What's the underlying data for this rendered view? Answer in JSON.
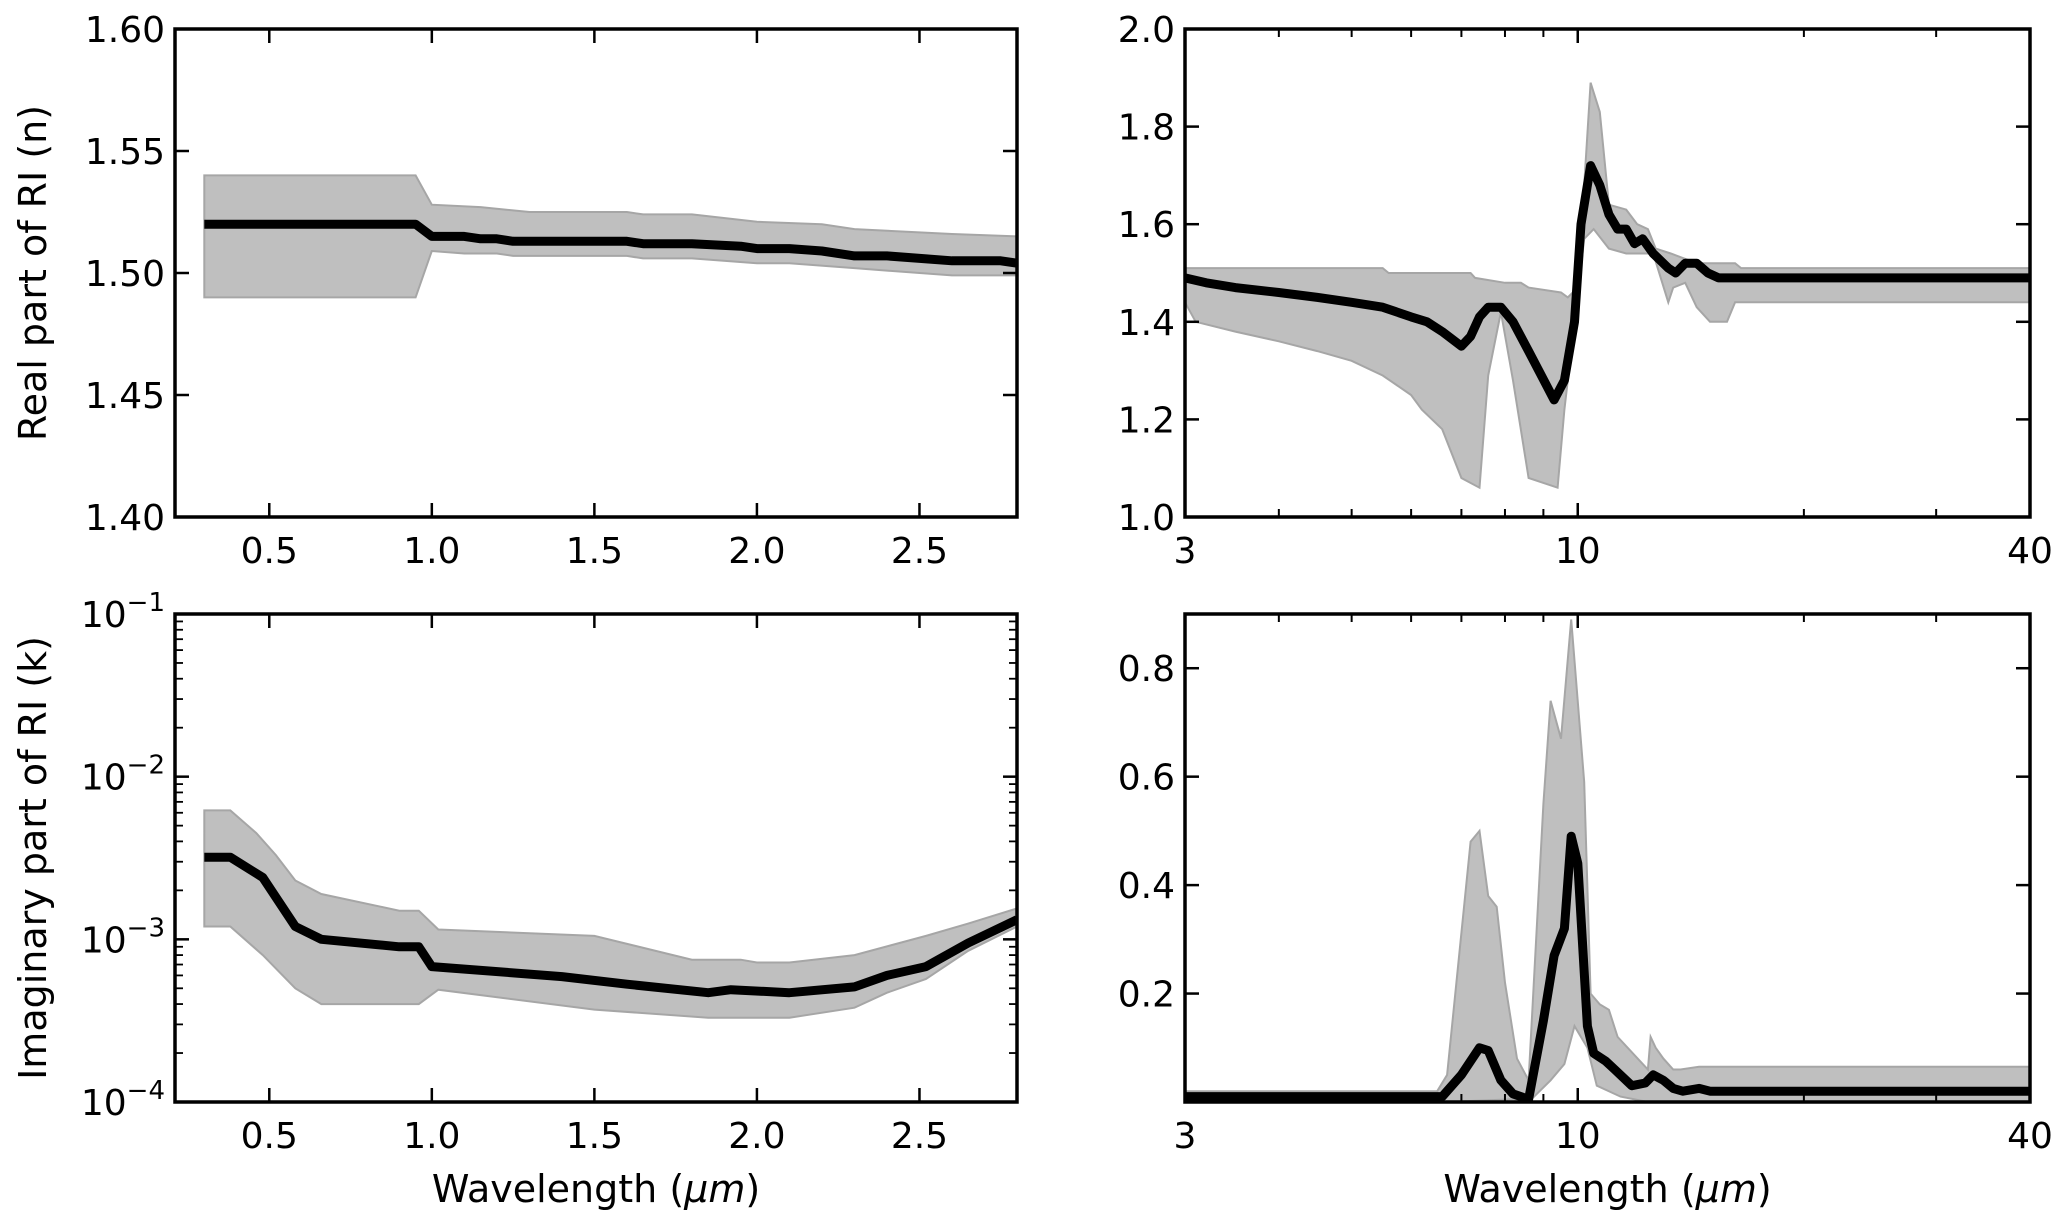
{
  "chart_data": [
    {
      "id": "real-short",
      "type": "line",
      "xlabel": "",
      "ylabel": "Real part of RI (n)",
      "xscale": "linear",
      "yscale": "linear",
      "xlim": [
        0.21,
        2.8
      ],
      "ylim": [
        1.4,
        1.6
      ],
      "xticks": [
        0.5,
        1.0,
        1.5,
        2.0,
        2.5
      ],
      "xticklabels": [
        "0.5",
        "1.0",
        "1.5",
        "2.0",
        "2.5"
      ],
      "yticks": [
        1.4,
        1.45,
        1.5,
        1.55,
        1.6
      ],
      "yticklabels": [
        "1.40",
        "1.45",
        "1.50",
        "1.55",
        "1.60"
      ],
      "grid": false,
      "mean": [
        [
          0.3,
          1.52
        ],
        [
          0.95,
          1.52
        ],
        [
          1.0,
          1.515
        ],
        [
          1.1,
          1.515
        ],
        [
          1.15,
          1.514
        ],
        [
          1.2,
          1.514
        ],
        [
          1.25,
          1.513
        ],
        [
          1.6,
          1.513
        ],
        [
          1.65,
          1.512
        ],
        [
          1.8,
          1.512
        ],
        [
          1.95,
          1.511
        ],
        [
          2.0,
          1.51
        ],
        [
          2.1,
          1.51
        ],
        [
          2.2,
          1.509
        ],
        [
          2.3,
          1.507
        ],
        [
          2.4,
          1.507
        ],
        [
          2.6,
          1.505
        ],
        [
          2.75,
          1.505
        ],
        [
          2.8,
          1.504
        ]
      ],
      "upper": [
        [
          0.3,
          1.54
        ],
        [
          0.95,
          1.54
        ],
        [
          1.0,
          1.528
        ],
        [
          1.15,
          1.527
        ],
        [
          1.3,
          1.525
        ],
        [
          1.6,
          1.525
        ],
        [
          1.65,
          1.524
        ],
        [
          1.8,
          1.524
        ],
        [
          2.0,
          1.521
        ],
        [
          2.2,
          1.52
        ],
        [
          2.3,
          1.518
        ],
        [
          2.6,
          1.516
        ],
        [
          2.8,
          1.515
        ]
      ],
      "lower": [
        [
          0.3,
          1.49
        ],
        [
          0.95,
          1.49
        ],
        [
          1.0,
          1.509
        ],
        [
          1.1,
          1.508
        ],
        [
          1.2,
          1.508
        ],
        [
          1.25,
          1.507
        ],
        [
          1.6,
          1.507
        ],
        [
          1.65,
          1.506
        ],
        [
          1.8,
          1.506
        ],
        [
          2.0,
          1.504
        ],
        [
          2.1,
          1.504
        ],
        [
          2.3,
          1.502
        ],
        [
          2.4,
          1.501
        ],
        [
          2.6,
          1.499
        ],
        [
          2.8,
          1.499
        ]
      ]
    },
    {
      "id": "real-long",
      "type": "line",
      "xlabel": "",
      "ylabel": "",
      "xscale": "log",
      "yscale": "linear",
      "xlim": [
        3,
        40
      ],
      "ylim": [
        1.0,
        2.0
      ],
      "xticks": [
        3,
        10,
        40
      ],
      "xticklabels": [
        "3",
        "10",
        "40"
      ],
      "xminorticks": [
        4,
        5,
        6,
        7,
        8,
        9,
        20,
        30
      ],
      "yticks": [
        1.0,
        1.2,
        1.4,
        1.6,
        1.8,
        2.0
      ],
      "yticklabels": [
        "1.0",
        "1.2",
        "1.4",
        "1.6",
        "1.8",
        "2.0"
      ],
      "grid": false,
      "mean": [
        [
          3,
          1.49
        ],
        [
          3.2,
          1.48
        ],
        [
          3.5,
          1.47
        ],
        [
          4,
          1.46
        ],
        [
          4.5,
          1.45
        ],
        [
          5,
          1.44
        ],
        [
          5.5,
          1.43
        ],
        [
          6,
          1.41
        ],
        [
          6.3,
          1.4
        ],
        [
          6.6,
          1.38
        ],
        [
          7.0,
          1.35
        ],
        [
          7.2,
          1.37
        ],
        [
          7.4,
          1.41
        ],
        [
          7.6,
          1.43
        ],
        [
          7.9,
          1.43
        ],
        [
          8.2,
          1.4
        ],
        [
          8.6,
          1.34
        ],
        [
          9.3,
          1.24
        ],
        [
          9.6,
          1.28
        ],
        [
          9.9,
          1.4
        ],
        [
          10.1,
          1.6
        ],
        [
          10.4,
          1.72
        ],
        [
          10.7,
          1.68
        ],
        [
          11.0,
          1.62
        ],
        [
          11.3,
          1.59
        ],
        [
          11.6,
          1.59
        ],
        [
          11.9,
          1.56
        ],
        [
          12.2,
          1.57
        ],
        [
          12.6,
          1.54
        ],
        [
          13.2,
          1.51
        ],
        [
          13.5,
          1.5
        ],
        [
          13.9,
          1.52
        ],
        [
          14.4,
          1.52
        ],
        [
          14.9,
          1.5
        ],
        [
          15.4,
          1.49
        ],
        [
          40,
          1.49
        ]
      ],
      "upper": [
        [
          3,
          1.51
        ],
        [
          5.5,
          1.51
        ],
        [
          5.6,
          1.5
        ],
        [
          7.2,
          1.5
        ],
        [
          7.3,
          1.49
        ],
        [
          8.0,
          1.48
        ],
        [
          8.4,
          1.48
        ],
        [
          8.6,
          1.47
        ],
        [
          9.5,
          1.46
        ],
        [
          9.7,
          1.45
        ],
        [
          10.0,
          1.47
        ],
        [
          10.4,
          1.89
        ],
        [
          10.7,
          1.83
        ],
        [
          11.0,
          1.64
        ],
        [
          11.6,
          1.63
        ],
        [
          12.0,
          1.6
        ],
        [
          12.4,
          1.59
        ],
        [
          12.7,
          1.55
        ],
        [
          13.3,
          1.54
        ],
        [
          14.4,
          1.52
        ],
        [
          16.2,
          1.52
        ],
        [
          16.5,
          1.51
        ],
        [
          40,
          1.51
        ]
      ],
      "lower": [
        [
          3,
          1.44
        ],
        [
          3.1,
          1.4
        ],
        [
          3.5,
          1.38
        ],
        [
          4,
          1.36
        ],
        [
          4.5,
          1.34
        ],
        [
          5,
          1.32
        ],
        [
          5.5,
          1.29
        ],
        [
          6,
          1.25
        ],
        [
          6.2,
          1.22
        ],
        [
          6.6,
          1.18
        ],
        [
          7.0,
          1.08
        ],
        [
          7.4,
          1.06
        ],
        [
          7.6,
          1.29
        ],
        [
          7.9,
          1.42
        ],
        [
          8.2,
          1.28
        ],
        [
          8.6,
          1.08
        ],
        [
          9.4,
          1.06
        ],
        [
          9.6,
          1.22
        ],
        [
          10.2,
          1.57
        ],
        [
          10.5,
          1.59
        ],
        [
          11.0,
          1.55
        ],
        [
          11.6,
          1.54
        ],
        [
          12.6,
          1.54
        ],
        [
          13.2,
          1.44
        ],
        [
          13.4,
          1.47
        ],
        [
          13.9,
          1.48
        ],
        [
          14.4,
          1.43
        ],
        [
          15,
          1.4
        ],
        [
          15.8,
          1.4
        ],
        [
          16.2,
          1.44
        ],
        [
          40,
          1.44
        ]
      ]
    },
    {
      "id": "imag-short",
      "type": "line",
      "xlabel": "Wavelength (μm)",
      "ylabel": "Imaginary part of RI (k)",
      "xscale": "linear",
      "yscale": "log",
      "xlim": [
        0.21,
        2.8
      ],
      "ylim": [
        0.0001,
        0.1
      ],
      "xticks": [
        0.5,
        1.0,
        1.5,
        2.0,
        2.5
      ],
      "xticklabels": [
        "0.5",
        "1.0",
        "1.5",
        "2.0",
        "2.5"
      ],
      "yticks": [
        0.0001,
        0.001,
        0.01,
        0.1
      ],
      "yticklabels": [
        "10^-4",
        "10^-3",
        "10^-2",
        "10^-1"
      ],
      "grid": false,
      "mean": [
        [
          0.3,
          0.0032
        ],
        [
          0.38,
          0.0032
        ],
        [
          0.48,
          0.0024
        ],
        [
          0.58,
          0.0012
        ],
        [
          0.66,
          0.001
        ],
        [
          0.9,
          0.0009
        ],
        [
          0.96,
          0.0009
        ],
        [
          1.0,
          0.00068
        ],
        [
          1.4,
          0.00059
        ],
        [
          1.6,
          0.00053
        ],
        [
          1.85,
          0.00047
        ],
        [
          1.92,
          0.00049
        ],
        [
          2.1,
          0.00047
        ],
        [
          2.3,
          0.00051
        ],
        [
          2.4,
          0.0006
        ],
        [
          2.52,
          0.00068
        ],
        [
          2.65,
          0.00095
        ],
        [
          2.8,
          0.00132
        ]
      ],
      "upper": [
        [
          0.3,
          0.0062
        ],
        [
          0.38,
          0.0062
        ],
        [
          0.46,
          0.0045
        ],
        [
          0.52,
          0.0033
        ],
        [
          0.58,
          0.0023
        ],
        [
          0.66,
          0.0019
        ],
        [
          0.9,
          0.0015
        ],
        [
          0.96,
          0.0015
        ],
        [
          1.02,
          0.00115
        ],
        [
          1.5,
          0.00105
        ],
        [
          1.8,
          0.00075
        ],
        [
          1.95,
          0.00075
        ],
        [
          2.0,
          0.00072
        ],
        [
          2.1,
          0.00072
        ],
        [
          2.3,
          0.0008
        ],
        [
          2.52,
          0.00105
        ],
        [
          2.65,
          0.00125
        ],
        [
          2.8,
          0.00155
        ]
      ],
      "lower": [
        [
          0.3,
          0.0012
        ],
        [
          0.38,
          0.0012
        ],
        [
          0.48,
          0.0008
        ],
        [
          0.58,
          0.0005
        ],
        [
          0.66,
          0.0004
        ],
        [
          0.96,
          0.0004
        ],
        [
          1.02,
          0.00049
        ],
        [
          1.5,
          0.00037
        ],
        [
          1.85,
          0.00033
        ],
        [
          2.1,
          0.00033
        ],
        [
          2.3,
          0.00038
        ],
        [
          2.4,
          0.00047
        ],
        [
          2.52,
          0.00057
        ],
        [
          2.65,
          0.00085
        ],
        [
          2.8,
          0.0012
        ]
      ]
    },
    {
      "id": "imag-long",
      "type": "line",
      "xlabel": "Wavelength (μm)",
      "ylabel": "",
      "xscale": "log",
      "yscale": "linear",
      "xlim": [
        3,
        40
      ],
      "ylim": [
        0,
        0.9
      ],
      "xticks": [
        3,
        10,
        40
      ],
      "xticklabels": [
        "3",
        "10",
        "40"
      ],
      "xminorticks": [
        4,
        5,
        6,
        7,
        8,
        9,
        20,
        30
      ],
      "yticks": [
        0.2,
        0.4,
        0.6,
        0.8
      ],
      "yticklabels": [
        "0.2",
        "0.4",
        "0.6",
        "0.8"
      ],
      "grid": false,
      "mean": [
        [
          3,
          0.01
        ],
        [
          6.6,
          0.01
        ],
        [
          7.0,
          0.05
        ],
        [
          7.4,
          0.1
        ],
        [
          7.6,
          0.095
        ],
        [
          7.9,
          0.04
        ],
        [
          8.2,
          0.015
        ],
        [
          8.6,
          0.005
        ],
        [
          9.0,
          0.15
        ],
        [
          9.3,
          0.27
        ],
        [
          9.6,
          0.32
        ],
        [
          9.8,
          0.49
        ],
        [
          10.0,
          0.44
        ],
        [
          10.3,
          0.14
        ],
        [
          10.5,
          0.09
        ],
        [
          10.9,
          0.075
        ],
        [
          11.2,
          0.06
        ],
        [
          11.8,
          0.03
        ],
        [
          12.3,
          0.035
        ],
        [
          12.6,
          0.05
        ],
        [
          13.0,
          0.04
        ],
        [
          13.4,
          0.025
        ],
        [
          13.8,
          0.02
        ],
        [
          14.5,
          0.025
        ],
        [
          15,
          0.02
        ],
        [
          40,
          0.02
        ]
      ],
      "upper": [
        [
          3,
          0.02
        ],
        [
          6.5,
          0.02
        ],
        [
          6.7,
          0.05
        ],
        [
          7.2,
          0.48
        ],
        [
          7.4,
          0.5
        ],
        [
          7.6,
          0.38
        ],
        [
          7.8,
          0.36
        ],
        [
          8.0,
          0.22
        ],
        [
          8.3,
          0.08
        ],
        [
          8.6,
          0.04
        ],
        [
          9.0,
          0.55
        ],
        [
          9.2,
          0.74
        ],
        [
          9.5,
          0.67
        ],
        [
          9.8,
          0.89
        ],
        [
          10.2,
          0.59
        ],
        [
          10.4,
          0.2
        ],
        [
          10.7,
          0.18
        ],
        [
          11.0,
          0.17
        ],
        [
          11.3,
          0.12
        ],
        [
          12.4,
          0.06
        ],
        [
          12.5,
          0.12
        ],
        [
          12.7,
          0.1
        ],
        [
          13.0,
          0.08
        ],
        [
          13.4,
          0.06
        ],
        [
          13.7,
          0.06
        ],
        [
          14.5,
          0.065
        ],
        [
          40,
          0.065
        ]
      ],
      "lower": [
        [
          3,
          0.0
        ],
        [
          6.7,
          0.0
        ],
        [
          8.2,
          0.005
        ],
        [
          8.6,
          0.0
        ],
        [
          9.2,
          0.04
        ],
        [
          9.6,
          0.07
        ],
        [
          9.9,
          0.14
        ],
        [
          10.3,
          0.1
        ],
        [
          10.6,
          0.03
        ],
        [
          11.4,
          0.01
        ],
        [
          12.4,
          0.0
        ],
        [
          14,
          0.0
        ],
        [
          40,
          0.0
        ]
      ]
    }
  ],
  "colors": {
    "mean_line": "#000000",
    "band_fill": "#bfbfbf",
    "band_edge": "#a6a6a6",
    "axes": "#000000"
  }
}
